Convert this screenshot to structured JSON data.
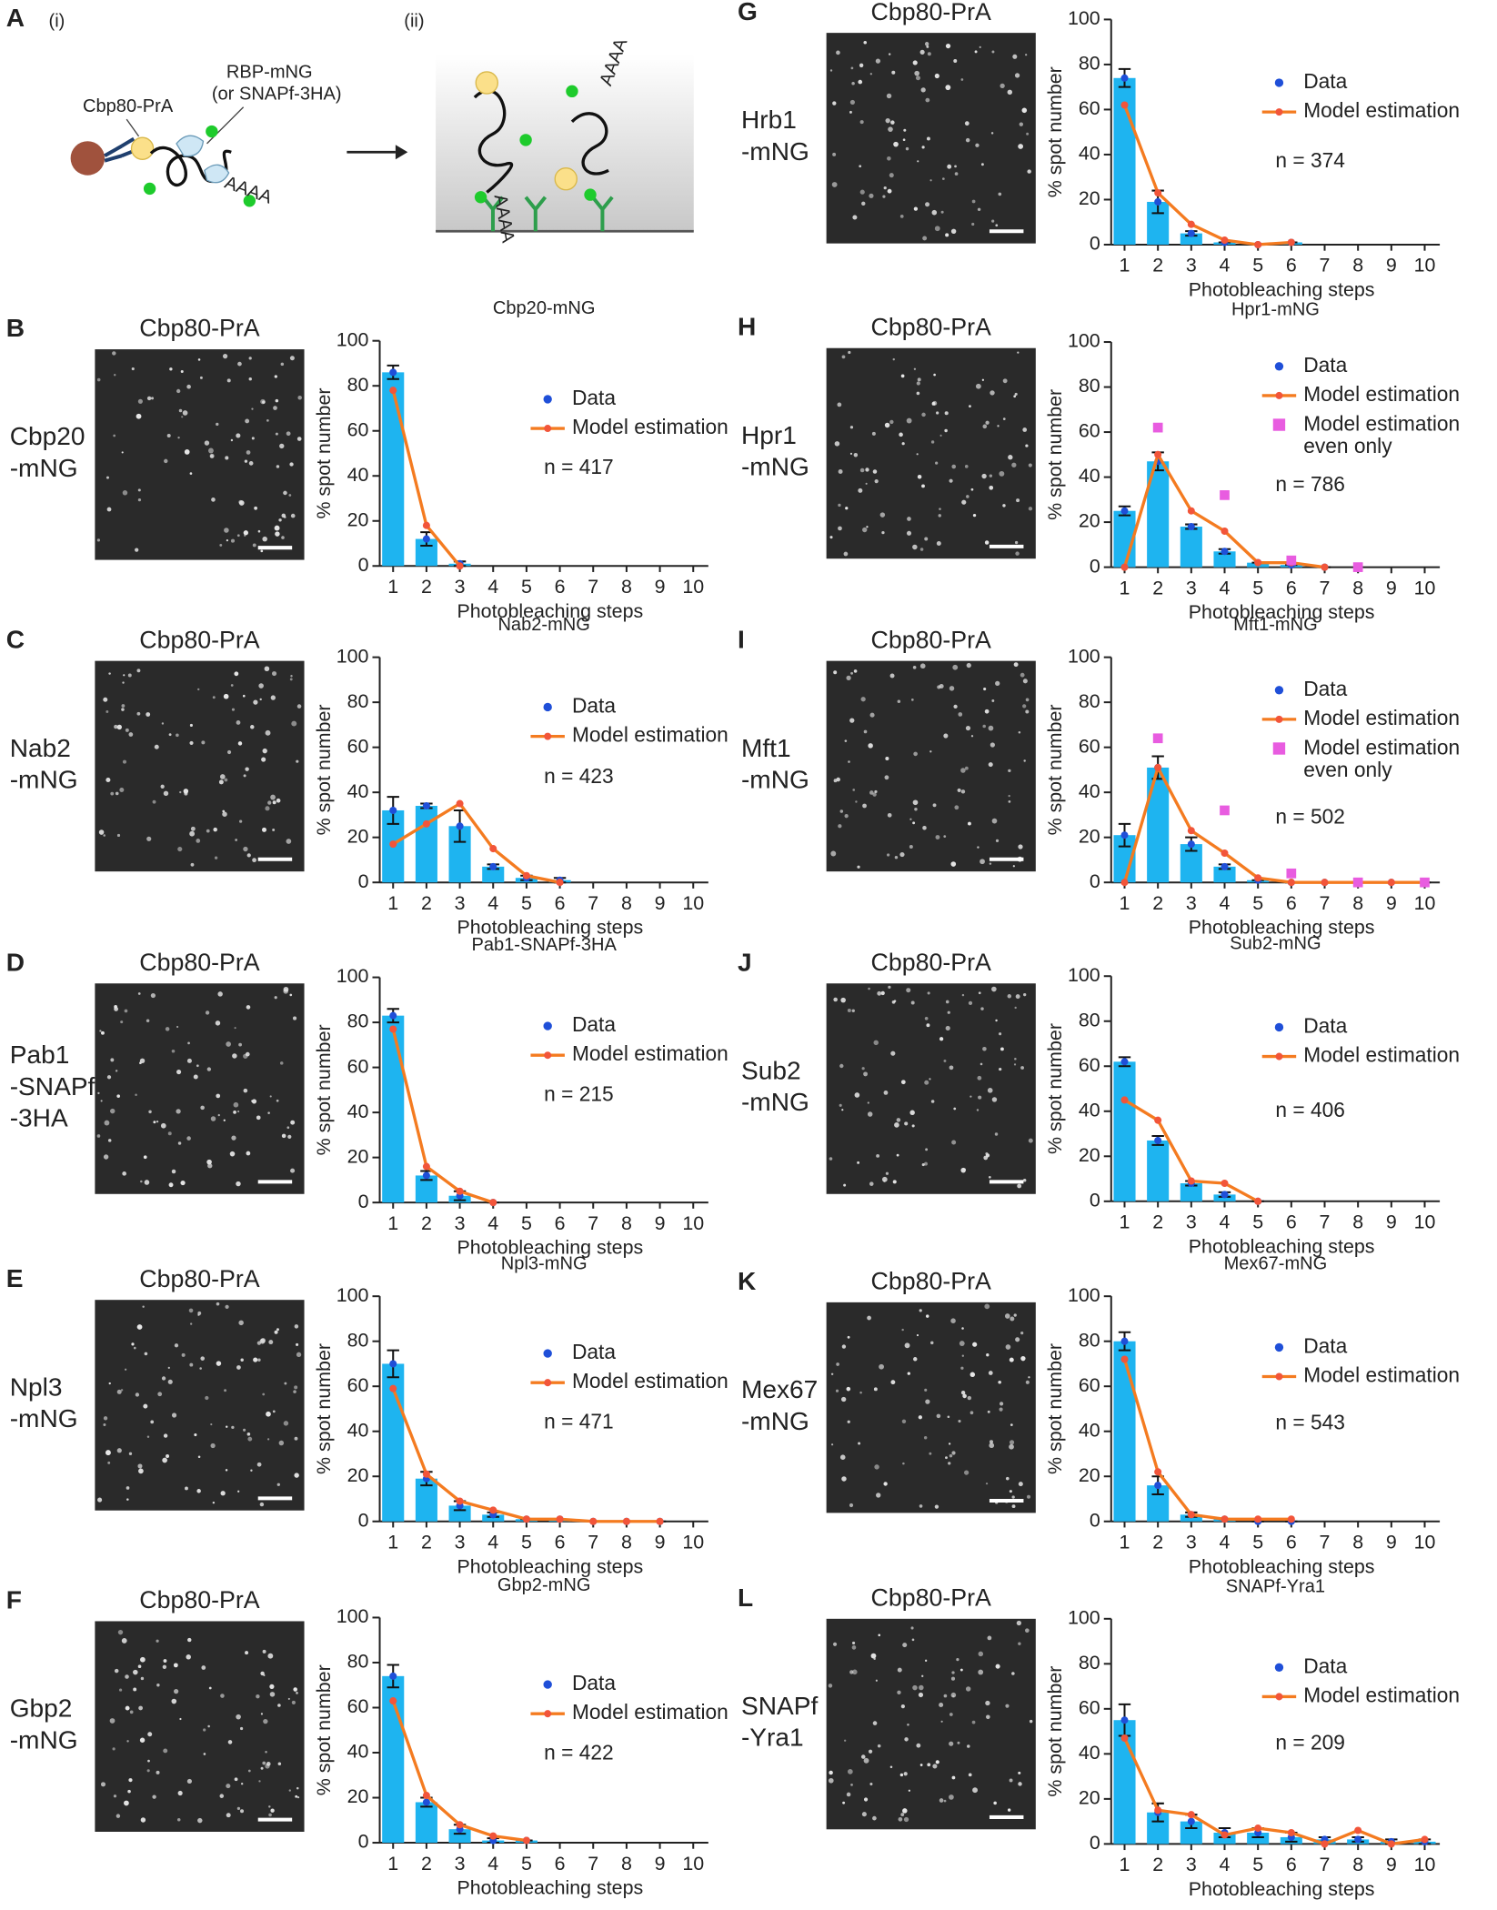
{
  "diagram": {
    "panel": "A",
    "part1": "(i)",
    "part2": "(ii)",
    "cap_label": "Cbp80-PrA",
    "rbp_label": "RBP-mNG",
    "rbp_alt": "(or SNAPf-3HA)",
    "polya": "AAAA"
  },
  "chart_data": [
    {
      "type": "bar",
      "panel": "B",
      "image_label": "Cbp80-PrA",
      "row_label": [
        "Cbp20",
        "-mNG"
      ],
      "title": "Cbp20-mNG",
      "annotation": "n = 417",
      "xlabel": "Photobleaching steps",
      "ylabel": "% spot number",
      "categories": [
        "1",
        "2",
        "3",
        "4",
        "5",
        "6",
        "7",
        "8",
        "9",
        "10"
      ],
      "ylim": [
        0,
        100
      ],
      "yticks": [
        0,
        20,
        40,
        60,
        80,
        100
      ],
      "series": [
        {
          "name": "Data",
          "color": "#1eb4f0",
          "values": [
            86,
            12,
            1,
            null,
            null,
            null,
            null,
            null,
            null,
            null
          ],
          "errors": [
            3,
            3,
            1,
            null,
            null,
            null,
            null,
            null,
            null,
            null
          ]
        },
        {
          "name": "Model estimation",
          "color": "#f47b20",
          "values": [
            78,
            18,
            0,
            null,
            null,
            null,
            null,
            null,
            null,
            null
          ]
        }
      ]
    },
    {
      "type": "bar",
      "panel": "C",
      "image_label": "Cbp80-PrA",
      "row_label": [
        "Nab2",
        "-mNG"
      ],
      "title": "Nab2-mNG",
      "annotation": "n = 423",
      "xlabel": "Photobleaching steps",
      "ylabel": "% spot number",
      "categories": [
        "1",
        "2",
        "3",
        "4",
        "5",
        "6",
        "7",
        "8",
        "9",
        "10"
      ],
      "ylim": [
        0,
        100
      ],
      "yticks": [
        0,
        20,
        40,
        60,
        80,
        100
      ],
      "series": [
        {
          "name": "Data",
          "color": "#1eb4f0",
          "values": [
            32,
            34,
            25,
            7,
            2,
            1,
            null,
            null,
            null,
            null
          ],
          "errors": [
            6,
            1,
            7,
            1,
            1,
            1,
            null,
            null,
            null,
            null
          ]
        },
        {
          "name": "Model estimation",
          "color": "#f47b20",
          "values": [
            17,
            26,
            35,
            15,
            3,
            0,
            null,
            null,
            null,
            null
          ]
        }
      ]
    },
    {
      "type": "bar",
      "panel": "D",
      "image_label": "Cbp80-PrA",
      "row_label": [
        "Pab1",
        "-SNAPf",
        "-3HA"
      ],
      "title": "Pab1-SNAPf-3HA",
      "annotation": "n = 215",
      "xlabel": "Photobleaching steps",
      "ylabel": "% spot number",
      "categories": [
        "1",
        "2",
        "3",
        "4",
        "5",
        "6",
        "7",
        "8",
        "9",
        "10"
      ],
      "ylim": [
        0,
        100
      ],
      "yticks": [
        0,
        20,
        40,
        60,
        80,
        100
      ],
      "series": [
        {
          "name": "Data",
          "color": "#1eb4f0",
          "values": [
            83,
            12,
            3,
            0,
            null,
            null,
            null,
            null,
            null,
            null
          ],
          "errors": [
            3,
            2,
            2,
            0,
            null,
            null,
            null,
            null,
            null,
            null
          ]
        },
        {
          "name": "Model estimation",
          "color": "#f47b20",
          "values": [
            77,
            16,
            5,
            0,
            null,
            null,
            null,
            null,
            null,
            null
          ]
        }
      ]
    },
    {
      "type": "bar",
      "panel": "E",
      "image_label": "Cbp80-PrA",
      "row_label": [
        "Npl3",
        "-mNG"
      ],
      "title": "Npl3-mNG",
      "annotation": "n = 471",
      "xlabel": "Photobleaching steps",
      "ylabel": "% spot number",
      "categories": [
        "1",
        "2",
        "3",
        "4",
        "5",
        "6",
        "7",
        "8",
        "9",
        "10"
      ],
      "ylim": [
        0,
        100
      ],
      "yticks": [
        0,
        20,
        40,
        60,
        80,
        100
      ],
      "series": [
        {
          "name": "Data",
          "color": "#1eb4f0",
          "values": [
            70,
            19,
            7,
            3,
            1,
            1,
            0,
            0,
            0,
            null
          ],
          "errors": [
            6,
            3,
            2,
            1,
            0,
            0,
            0,
            0,
            0,
            null
          ]
        },
        {
          "name": "Model estimation",
          "color": "#f47b20",
          "values": [
            59,
            21,
            9,
            5,
            1,
            1,
            0,
            0,
            0,
            null
          ]
        }
      ]
    },
    {
      "type": "bar",
      "panel": "F",
      "image_label": "Cbp80-PrA",
      "row_label": [
        "Gbp2",
        "-mNG"
      ],
      "title": "Gbp2-mNG",
      "annotation": "n = 422",
      "xlabel": "Photobleaching steps",
      "ylabel": "% spot number",
      "categories": [
        "1",
        "2",
        "3",
        "4",
        "5",
        "6",
        "7",
        "8",
        "9",
        "10"
      ],
      "ylim": [
        0,
        100
      ],
      "yticks": [
        0,
        20,
        40,
        60,
        80,
        100
      ],
      "series": [
        {
          "name": "Data",
          "color": "#1eb4f0",
          "values": [
            74,
            18,
            6,
            1,
            1,
            null,
            null,
            null,
            null,
            null
          ],
          "errors": [
            5,
            2,
            2,
            1,
            0,
            null,
            null,
            null,
            null,
            null
          ]
        },
        {
          "name": "Model estimation",
          "color": "#f47b20",
          "values": [
            63,
            21,
            8,
            3,
            1,
            null,
            null,
            null,
            null,
            null
          ]
        }
      ]
    },
    {
      "type": "bar",
      "panel": "G",
      "image_label": "Cbp80-PrA",
      "row_label": [
        "Hrb1",
        "-mNG"
      ],
      "title": "Hrb1-mNG",
      "annotation": "n = 374",
      "xlabel": "Photobleaching steps",
      "ylabel": "% spot number",
      "categories": [
        "1",
        "2",
        "3",
        "4",
        "5",
        "6",
        "7",
        "8",
        "9",
        "10"
      ],
      "ylim": [
        0,
        100
      ],
      "yticks": [
        0,
        20,
        40,
        60,
        80,
        100
      ],
      "series": [
        {
          "name": "Data",
          "color": "#1eb4f0",
          "values": [
            74,
            19,
            5,
            1,
            0,
            1,
            null,
            null,
            null,
            null
          ],
          "errors": [
            4,
            5,
            1,
            0,
            0,
            0,
            null,
            null,
            null,
            null
          ]
        },
        {
          "name": "Model estimation",
          "color": "#f47b20",
          "values": [
            62,
            23,
            9,
            2,
            0,
            1,
            null,
            null,
            null,
            null
          ]
        }
      ]
    },
    {
      "type": "bar",
      "panel": "H",
      "image_label": "Cbp80-PrA",
      "row_label": [
        "Hpr1",
        "-mNG"
      ],
      "title": "Hpr1-mNG",
      "annotation": "n = 786",
      "xlabel": "Photobleaching steps",
      "ylabel": "% spot number",
      "categories": [
        "1",
        "2",
        "3",
        "4",
        "5",
        "6",
        "7",
        "8",
        "9",
        "10"
      ],
      "ylim": [
        0,
        100
      ],
      "yticks": [
        0,
        20,
        40,
        60,
        80,
        100
      ],
      "series": [
        {
          "name": "Data",
          "color": "#1eb4f0",
          "values": [
            25,
            47,
            18,
            7,
            2,
            1,
            0,
            null,
            null,
            null
          ],
          "errors": [
            2,
            4,
            1,
            1,
            0,
            0,
            0,
            null,
            null,
            null
          ]
        },
        {
          "name": "Model estimation",
          "color": "#f47b20",
          "values": [
            0,
            50,
            25,
            16,
            2,
            2,
            0,
            null,
            null,
            null
          ]
        },
        {
          "name": "Model estimation even only",
          "color": "#e85ce0",
          "values": [
            null,
            62,
            null,
            32,
            null,
            3,
            null,
            0,
            null,
            null
          ]
        }
      ]
    },
    {
      "type": "bar",
      "panel": "I",
      "image_label": "Cbp80-PrA",
      "row_label": [
        "Mft1",
        "-mNG"
      ],
      "title": "Mft1-mNG",
      "annotation": "n = 502",
      "xlabel": "Photobleaching steps",
      "ylabel": "% spot number",
      "categories": [
        "1",
        "2",
        "3",
        "4",
        "5",
        "6",
        "7",
        "8",
        "9",
        "10"
      ],
      "ylim": [
        0,
        100
      ],
      "yticks": [
        0,
        20,
        40,
        60,
        80,
        100
      ],
      "series": [
        {
          "name": "Data",
          "color": "#1eb4f0",
          "values": [
            21,
            51,
            17,
            7,
            1,
            0,
            0,
            0,
            0,
            0
          ],
          "errors": [
            5,
            5,
            3,
            1,
            0,
            0,
            0,
            0,
            0,
            0
          ]
        },
        {
          "name": "Model estimation",
          "color": "#f47b20",
          "values": [
            0,
            51,
            23,
            13,
            2,
            0,
            0,
            0,
            0,
            0
          ]
        },
        {
          "name": "Model estimation even only",
          "color": "#e85ce0",
          "values": [
            null,
            64,
            null,
            32,
            null,
            4,
            null,
            0,
            null,
            0
          ]
        }
      ]
    },
    {
      "type": "bar",
      "panel": "J",
      "image_label": "Cbp80-PrA",
      "row_label": [
        "Sub2",
        "-mNG"
      ],
      "title": "Sub2-mNG",
      "annotation": "n = 406",
      "xlabel": "Photobleaching steps",
      "ylabel": "% spot number",
      "categories": [
        "1",
        "2",
        "3",
        "4",
        "5",
        "6",
        "7",
        "8",
        "9",
        "10"
      ],
      "ylim": [
        0,
        100
      ],
      "yticks": [
        0,
        20,
        40,
        60,
        80,
        100
      ],
      "series": [
        {
          "name": "Data",
          "color": "#1eb4f0",
          "values": [
            62,
            27,
            8,
            3,
            0,
            null,
            null,
            null,
            null,
            null
          ],
          "errors": [
            2,
            2,
            1,
            1,
            0,
            null,
            null,
            null,
            null,
            null
          ]
        },
        {
          "name": "Model estimation",
          "color": "#f47b20",
          "values": [
            45,
            36,
            9,
            8,
            0,
            null,
            null,
            null,
            null,
            null
          ]
        }
      ]
    },
    {
      "type": "bar",
      "panel": "K",
      "image_label": "Cbp80-PrA",
      "row_label": [
        "Mex67",
        "-mNG"
      ],
      "title": "Mex67-mNG",
      "annotation": "n = 543",
      "xlabel": "Photobleaching steps",
      "ylabel": "% spot number",
      "categories": [
        "1",
        "2",
        "3",
        "4",
        "5",
        "6",
        "7",
        "8",
        "9",
        "10"
      ],
      "ylim": [
        0,
        100
      ],
      "yticks": [
        0,
        20,
        40,
        60,
        80,
        100
      ],
      "series": [
        {
          "name": "Data",
          "color": "#1eb4f0",
          "values": [
            80,
            16,
            3,
            1,
            0,
            0,
            null,
            null,
            null,
            null
          ],
          "errors": [
            4,
            4,
            1,
            0,
            0,
            0,
            null,
            null,
            null,
            null
          ]
        },
        {
          "name": "Model estimation",
          "color": "#f47b20",
          "values": [
            72,
            22,
            3,
            1,
            1,
            1,
            null,
            null,
            null,
            null
          ]
        }
      ]
    },
    {
      "type": "bar",
      "panel": "L",
      "image_label": "Cbp80-PrA",
      "row_label": [
        "SNAPf",
        "-Yra1"
      ],
      "title": "SNAPf-Yra1",
      "annotation": "n = 209",
      "xlabel": "Photobleaching steps",
      "ylabel": "% spot number",
      "categories": [
        "1",
        "2",
        "3",
        "4",
        "5",
        "6",
        "7",
        "8",
        "9",
        "10"
      ],
      "ylim": [
        0,
        100
      ],
      "yticks": [
        0,
        20,
        40,
        60,
        80,
        100
      ],
      "series": [
        {
          "name": "Data",
          "color": "#1eb4f0",
          "values": [
            55,
            14,
            10,
            5,
            5,
            3,
            2,
            2,
            1,
            1
          ],
          "errors": [
            7,
            4,
            3,
            2,
            2,
            2,
            1,
            1,
            1,
            1
          ]
        },
        {
          "name": "Model estimation",
          "color": "#f47b20",
          "values": [
            47,
            15,
            13,
            4,
            7,
            5,
            0,
            6,
            0,
            2
          ]
        }
      ]
    }
  ]
}
